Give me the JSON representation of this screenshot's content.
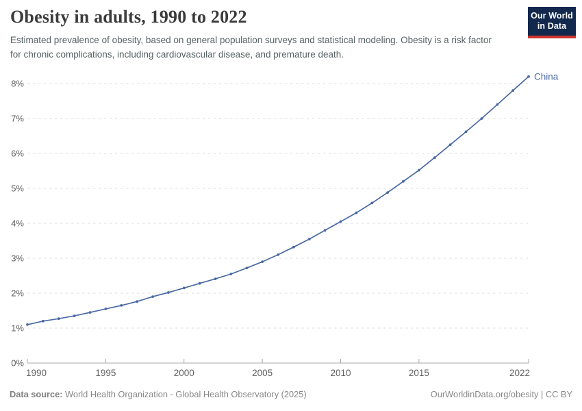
{
  "header": {
    "title": "Obesity in adults, 1990 to 2022",
    "subtitle": "Estimated prevalence of obesity, based on general population surveys and statistical modeling. Obesity is a risk factor for chronic complications, including cardiovascular disease, and premature death.",
    "logo": {
      "line1": "Our World",
      "line2": "in Data"
    }
  },
  "footer": {
    "source_label": "Data source:",
    "source_text": " World Health Organization - Global Health Observatory (2025)",
    "link_text": "OurWorldinData.org/obesity | CC BY"
  },
  "colors": {
    "series_blue": "#4a69a2",
    "gridline": "#dcdcdc",
    "axis_line": "#a8a8a8",
    "tick_label": "#5e5e5e",
    "logo_navy": "#12294d",
    "logo_red": "#d0342c"
  },
  "chart_data": {
    "type": "line",
    "title": "Obesity in adults, 1990 to 2022",
    "xlabel": "",
    "ylabel": "",
    "grid": "horizontal-dashed",
    "legend_position": "end-of-line-label",
    "xlim": [
      1990,
      2022
    ],
    "ylim": [
      0,
      8.5
    ],
    "x_ticks": [
      1990,
      1995,
      2000,
      2005,
      2010,
      2015,
      2022
    ],
    "y_ticks": [
      0,
      1,
      2,
      3,
      4,
      5,
      6,
      7,
      8
    ],
    "y_tick_suffix": "%",
    "x": [
      1990,
      1991,
      1992,
      1993,
      1994,
      1995,
      1996,
      1997,
      1998,
      1999,
      2000,
      2001,
      2002,
      2003,
      2004,
      2005,
      2006,
      2007,
      2008,
      2009,
      2010,
      2011,
      2012,
      2013,
      2014,
      2015,
      2016,
      2017,
      2018,
      2019,
      2020,
      2021,
      2022
    ],
    "series": [
      {
        "name": "China",
        "color": "#4a69a2",
        "values": [
          1.1,
          1.2,
          1.27,
          1.35,
          1.45,
          1.55,
          1.65,
          1.76,
          1.9,
          2.02,
          2.15,
          2.28,
          2.41,
          2.55,
          2.72,
          2.9,
          3.1,
          3.32,
          3.55,
          3.8,
          4.05,
          4.3,
          4.58,
          4.88,
          5.2,
          5.52,
          5.88,
          6.25,
          6.62,
          7.0,
          7.4,
          7.8,
          8.2
        ]
      }
    ]
  }
}
